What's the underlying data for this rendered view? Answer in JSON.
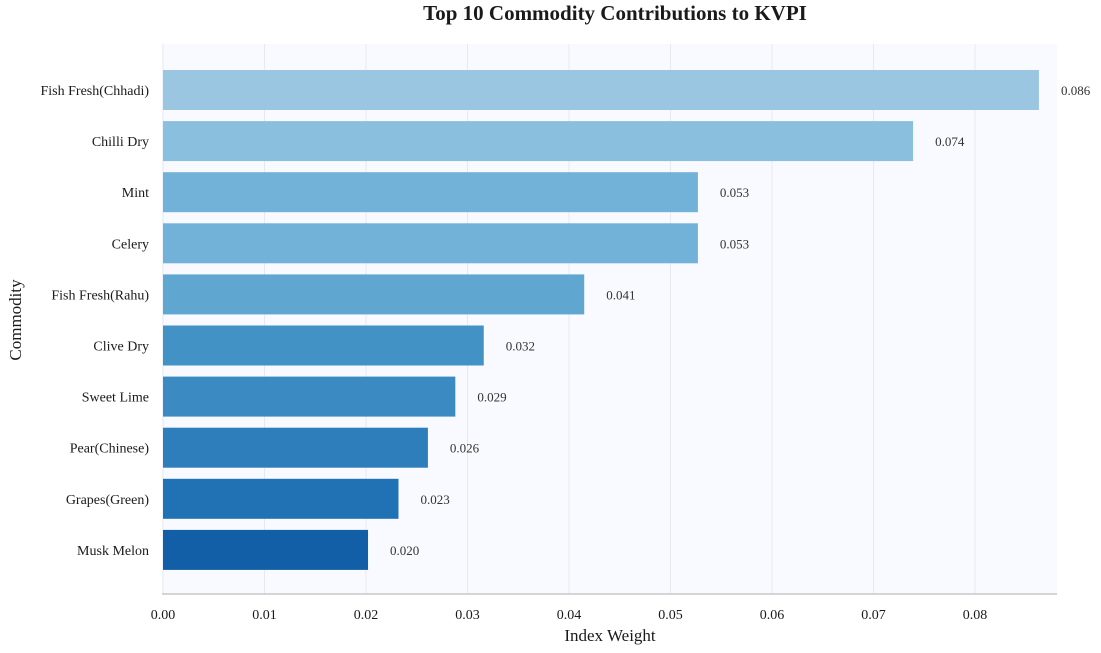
{
  "chart_data": {
    "type": "bar",
    "orientation": "horizontal",
    "title": "Top 10 Commodity Contributions to KVPI",
    "xlabel": "Index Weight",
    "ylabel": "Commodity",
    "categories": [
      "Fish Fresh(Chhadi)",
      "Chilli Dry",
      "Mint",
      "Celery",
      "Fish Fresh(Rahu)",
      "Clive Dry",
      "Sweet Lime",
      "Pear(Chinese)",
      "Grapes(Green)",
      "Musk Melon"
    ],
    "values": [
      0.0863,
      0.0739,
      0.0527,
      0.0527,
      0.0415,
      0.0316,
      0.0288,
      0.0261,
      0.0232,
      0.0202
    ],
    "value_labels": [
      "0.086",
      "0.074",
      "0.053",
      "0.053",
      "0.041",
      "0.032",
      "0.029",
      "0.026",
      "0.023",
      "0.020"
    ],
    "xlim": [
      0,
      0.088
    ],
    "xticks": [
      0.0,
      0.01,
      0.02,
      0.03,
      0.04,
      0.05,
      0.06,
      0.07,
      0.08
    ],
    "xtick_labels": [
      "0.00",
      "0.01",
      "0.02",
      "0.03",
      "0.04",
      "0.05",
      "0.06",
      "0.07",
      "0.08"
    ],
    "grid": "vertical",
    "colors": [
      "#9ac6e2",
      "#8bbfde",
      "#72b2d8",
      "#72b2d8",
      "#5fa6d1",
      "#4292c6",
      "#3b8bc2",
      "#2f7ebc",
      "#2171b5",
      "#135fa7"
    ],
    "plot_background": "#f8faff"
  }
}
